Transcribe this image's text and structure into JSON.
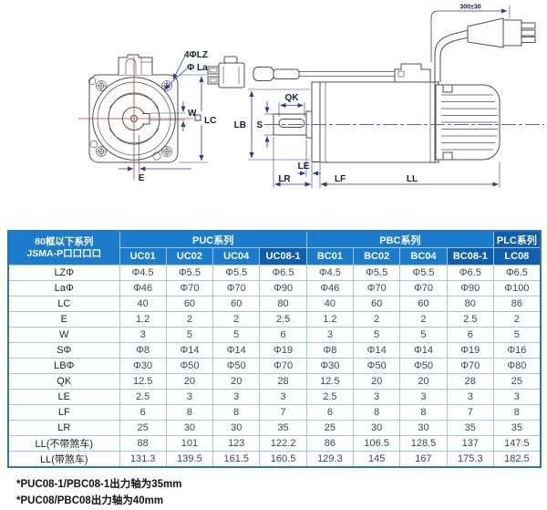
{
  "colors": {
    "header_blue": "#1b7ccd",
    "header_dark": "#0f5fae",
    "grid_line": "#a3c6e4",
    "outer_border": "#2e75b6",
    "dimension_navy": "#2e3a96",
    "centerline_red": "#c0392b",
    "centerline_blue": "#5563c9"
  },
  "diagram": {
    "front_labels": {
      "bolt": "4ΦLZ",
      "la": "Φ La",
      "w": "W",
      "lc": "LC",
      "e": "E"
    },
    "side_labels": {
      "qk": "QK",
      "s": "S",
      "lb": "LB",
      "le": "LE",
      "lr": "LR",
      "lf": "LF",
      "ll": "LL",
      "cable": "300±30"
    }
  },
  "table": {
    "corner_header": {
      "line1": "80框以下系列",
      "line2": "JSMA-P口口口口"
    },
    "groups": [
      {
        "label": "PUC系列",
        "span": 4,
        "highlight": false
      },
      {
        "label": "PBC系列",
        "span": 4,
        "highlight": false
      },
      {
        "label": "PLC系列",
        "span": 1,
        "highlight": true
      }
    ],
    "columns": [
      {
        "label": "UC01",
        "highlight": false
      },
      {
        "label": "UC02",
        "highlight": false
      },
      {
        "label": "UC04",
        "highlight": false
      },
      {
        "label": "UC08-1",
        "highlight": true
      },
      {
        "label": "BC01",
        "highlight": false
      },
      {
        "label": "BC02",
        "highlight": false
      },
      {
        "label": "BC04",
        "highlight": false
      },
      {
        "label": "BC08-1",
        "highlight": true
      },
      {
        "label": "LC08",
        "highlight": true
      }
    ],
    "rows": [
      {
        "label": "LZΦ",
        "values": [
          "Φ4.5",
          "Φ5.5",
          "Φ5.5",
          "Φ6.5",
          "Φ4.5",
          "Φ5.5",
          "Φ5.5",
          "Φ6.5",
          "Φ6.5"
        ]
      },
      {
        "label": "LaΦ",
        "values": [
          "Φ46",
          "Φ70",
          "Φ70",
          "Φ90",
          "Φ46",
          "Φ70",
          "Φ70",
          "Φ90",
          "Φ100"
        ]
      },
      {
        "label": "LC",
        "values": [
          "40",
          "60",
          "60",
          "80",
          "40",
          "60",
          "60",
          "80",
          "86"
        ]
      },
      {
        "label": "E",
        "values": [
          "1.2",
          "2",
          "2",
          "2.5",
          "1.2",
          "2",
          "2",
          "2.5",
          "2"
        ]
      },
      {
        "label": "W",
        "values": [
          "3",
          "5",
          "5",
          "6",
          "3",
          "5",
          "5",
          "6",
          "5"
        ]
      },
      {
        "label": "SΦ",
        "values": [
          "Φ8",
          "Φ14",
          "Φ14",
          "Φ19",
          "Φ8",
          "Φ14",
          "Φ14",
          "Φ19",
          "Φ16"
        ]
      },
      {
        "label": "LBΦ",
        "values": [
          "Φ30",
          "Φ50",
          "Φ50",
          "Φ70",
          "Φ30",
          "Φ50",
          "Φ50",
          "Φ70",
          "Φ80"
        ]
      },
      {
        "label": "QK",
        "values": [
          "12.5",
          "20",
          "20",
          "28",
          "12.5",
          "20",
          "20",
          "28",
          "25"
        ]
      },
      {
        "label": "LE",
        "values": [
          "2.5",
          "3",
          "3",
          "3",
          "2.5",
          "3",
          "3",
          "3",
          "3"
        ]
      },
      {
        "label": "LF",
        "values": [
          "6",
          "8",
          "8",
          "7",
          "6",
          "8",
          "8",
          "7",
          "8"
        ]
      },
      {
        "label": "LR",
        "values": [
          "25",
          "30",
          "30",
          "35",
          "25",
          "30",
          "30",
          "35",
          "35"
        ]
      },
      {
        "label": "LL(不带煞车)",
        "values": [
          "88",
          "101",
          "123",
          "122.2",
          "86",
          "106.5",
          "128.5",
          "137",
          "147.5"
        ]
      },
      {
        "label": "LL(带煞车)",
        "values": [
          "131.3",
          "139.5",
          "161.5",
          "160.5",
          "129.3",
          "145",
          "167",
          "175.3",
          "182.5"
        ]
      }
    ]
  },
  "footnotes": [
    "*PUC08-1/PBC08-1出力轴为35mm",
    "*PUC08/PBC08出力轴为40mm"
  ]
}
